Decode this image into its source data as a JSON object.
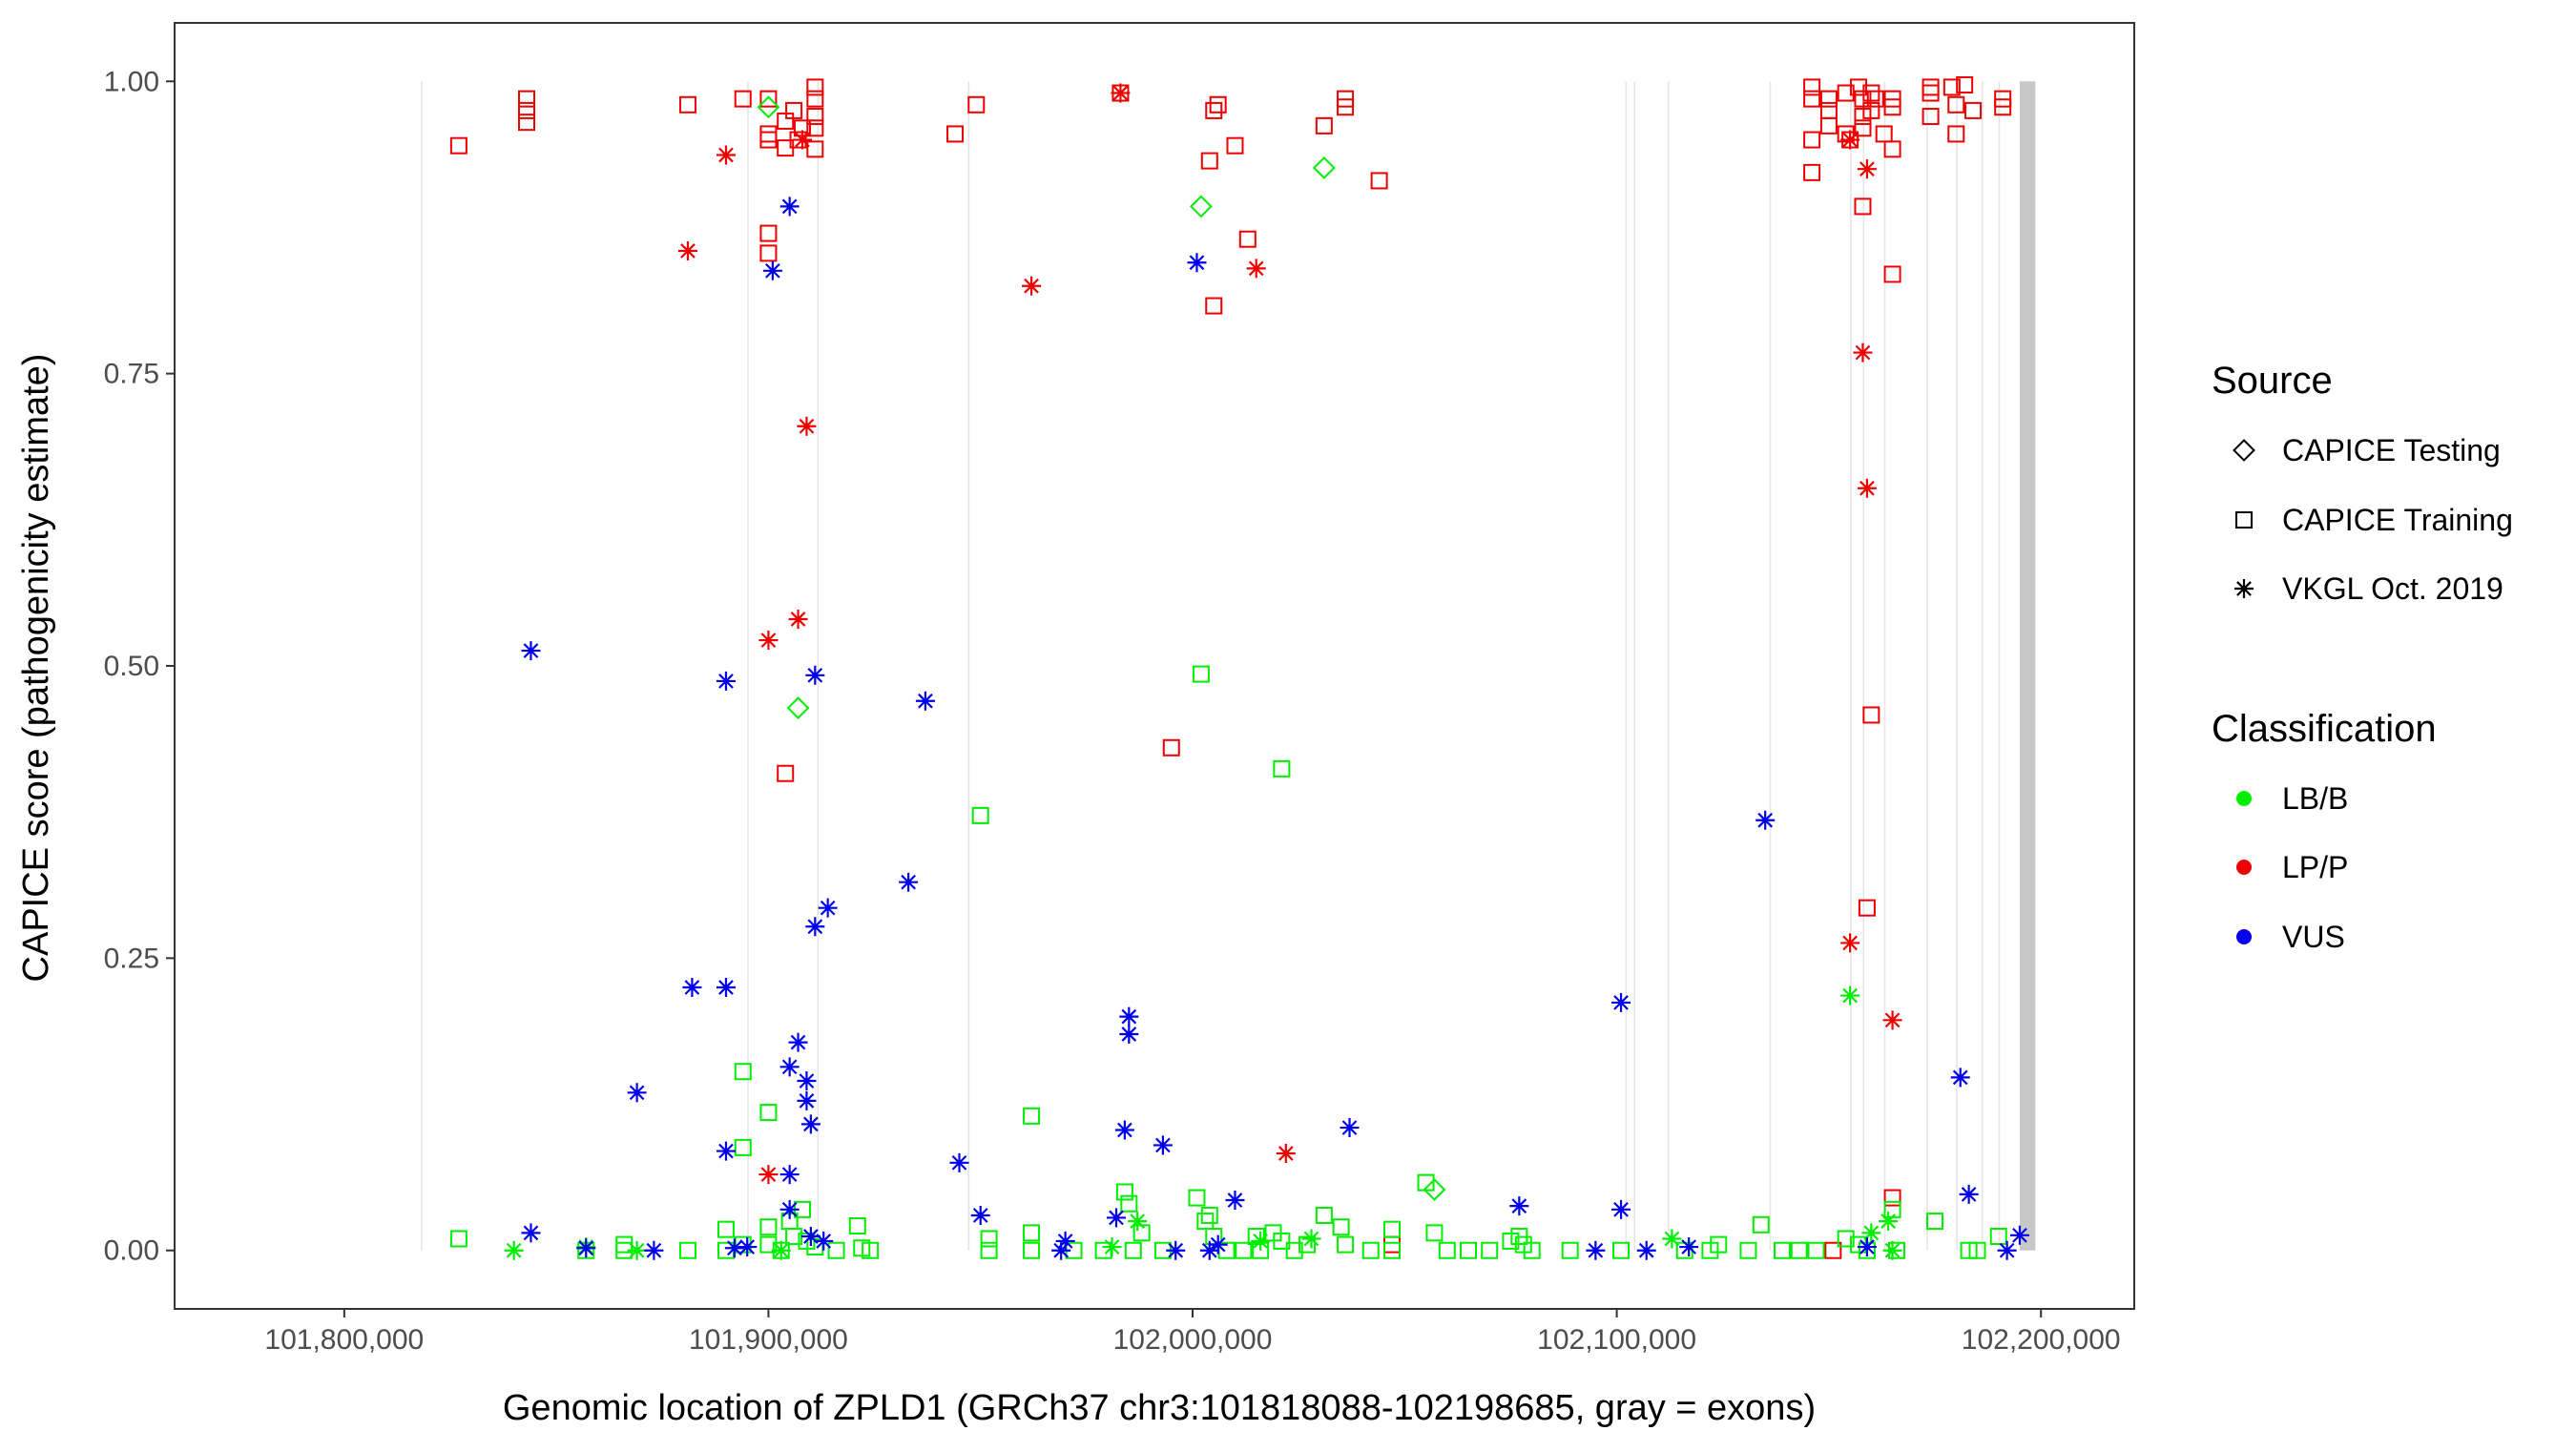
{
  "chart_data": {
    "type": "scatter",
    "xlabel": "Genomic location of ZPLD1 (GRCh37 chr3:101818088-102198685, gray = exons)",
    "ylabel": "CAPICE score (pathogenicity estimate)",
    "xlim": [
      101760000,
      102222000
    ],
    "ylim": [
      -0.05,
      1.05
    ],
    "x_ticks": [
      101800000,
      101900000,
      102000000,
      102100000,
      102200000
    ],
    "x_tick_labels": [
      "101,800,000",
      "101,900,000",
      "102,000,000",
      "102,100,000",
      "102,200,000"
    ],
    "y_ticks": [
      0,
      0.25,
      0.5,
      0.75,
      1.0
    ],
    "y_tick_labels": [
      "0.00",
      "0.25",
      "0.50",
      "0.75",
      "1.00"
    ],
    "grid": false,
    "exons": [
      [
        101818088,
        101818400
      ],
      [
        101895000,
        101895300
      ],
      [
        101911500,
        101911800
      ],
      [
        101947000,
        101947400
      ],
      [
        102102000,
        102102300
      ],
      [
        102104000,
        102104300
      ],
      [
        102112000,
        102112300
      ],
      [
        102136000,
        102136300
      ],
      [
        102155000,
        102155300
      ],
      [
        102158000,
        102158300
      ],
      [
        102163000,
        102163300
      ],
      [
        102173000,
        102173300
      ],
      [
        102180000,
        102180300
      ],
      [
        102186000,
        102186300
      ],
      [
        102190000,
        102190300
      ],
      [
        102195000,
        102198685
      ]
    ],
    "legend": {
      "placement": "right",
      "source_title": "Source",
      "source_entries": [
        {
          "label": "CAPICE Testing",
          "shape": "diamond"
        },
        {
          "label": "CAPICE Training",
          "shape": "square"
        },
        {
          "label": "VKGL Oct. 2019",
          "shape": "asterisk"
        }
      ],
      "class_title": "Classification",
      "class_entries": [
        {
          "label": "LB/B",
          "color": "#00ee00"
        },
        {
          "label": "LP/P",
          "color": "#ee0000"
        },
        {
          "label": "VUS",
          "color": "#0000ee"
        }
      ]
    },
    "colors": {
      "LB/B": "#00ee00",
      "LP/P": "#ee0000",
      "VUS": "#0000ee"
    },
    "series": [
      {
        "name": "LP/P - CAPICE Training",
        "class": "LP/P",
        "source": "CAPICE Training",
        "points": [
          [
            101827000,
            0.945
          ],
          [
            101843000,
            0.985
          ],
          [
            101843000,
            0.975
          ],
          [
            101843000,
            0.965
          ],
          [
            101881000,
            0.98
          ],
          [
            101894000,
            0.985
          ],
          [
            101900000,
            0.985
          ],
          [
            101900000,
            0.955
          ],
          [
            101900000,
            0.95
          ],
          [
            101900000,
            0.87
          ],
          [
            101900000,
            0.853
          ],
          [
            101904000,
            0.966
          ],
          [
            101904000,
            0.943
          ],
          [
            101906000,
            0.975
          ],
          [
            101907000,
            0.95
          ],
          [
            101908000,
            0.96
          ],
          [
            101911000,
            0.995
          ],
          [
            101911000,
            0.985
          ],
          [
            101911000,
            0.97
          ],
          [
            101911000,
            0.96
          ],
          [
            101911000,
            0.942
          ],
          [
            101904000,
            0.408
          ],
          [
            101944000,
            0.955
          ],
          [
            101949000,
            0.98
          ],
          [
            101983000,
            0.99
          ],
          [
            101995000,
            0.43
          ],
          [
            102004000,
            0.932
          ],
          [
            102005000,
            0.975
          ],
          [
            102006000,
            0.98
          ],
          [
            102005000,
            0.808
          ],
          [
            102010000,
            0.945
          ],
          [
            102013000,
            0.865
          ],
          [
            102031000,
            0.962
          ],
          [
            102036000,
            0.985
          ],
          [
            102036000,
            0.978
          ],
          [
            102044000,
            0.915
          ],
          [
            102047000,
            0.005
          ],
          [
            102146000,
            0.995
          ],
          [
            102146000,
            0.985
          ],
          [
            102146000,
            0.95
          ],
          [
            102146000,
            0.922
          ],
          [
            102150000,
            0.985
          ],
          [
            102150000,
            0.975
          ],
          [
            102150000,
            0.962
          ],
          [
            102154000,
            0.99
          ],
          [
            102154000,
            0.955
          ],
          [
            102155000,
            0.95
          ],
          [
            102157000,
            0.995
          ],
          [
            102158000,
            0.985
          ],
          [
            102158000,
            0.97
          ],
          [
            102158000,
            0.96
          ],
          [
            102158000,
            0.893
          ],
          [
            102160000,
            0.99
          ],
          [
            102160000,
            0.975
          ],
          [
            102161000,
            0.985
          ],
          [
            102163000,
            0.955
          ],
          [
            102165000,
            0.985
          ],
          [
            102165000,
            0.978
          ],
          [
            102165000,
            0.942
          ],
          [
            102165000,
            0.835
          ],
          [
            102159000,
            0.293
          ],
          [
            102160000,
            0.458
          ],
          [
            102165000,
            0.045
          ],
          [
            102174000,
            0.995
          ],
          [
            102174000,
            0.99
          ],
          [
            102174000,
            0.97
          ],
          [
            102179000,
            0.995
          ],
          [
            102180000,
            0.955
          ],
          [
            102180000,
            0.98
          ],
          [
            102182000,
            0.997
          ],
          [
            102184000,
            0.975
          ],
          [
            102191000,
            0.985
          ],
          [
            102191000,
            0.978
          ],
          [
            102151000,
            0.0
          ]
        ]
      },
      {
        "name": "LP/P - VKGL Oct. 2019",
        "class": "LP/P",
        "source": "VKGL Oct. 2019",
        "points": [
          [
            101881000,
            0.855
          ],
          [
            101890000,
            0.937
          ],
          [
            101900000,
            0.065
          ],
          [
            101900000,
            0.522
          ],
          [
            101907000,
            0.54
          ],
          [
            101908000,
            0.95
          ],
          [
            101909000,
            0.705
          ],
          [
            101962000,
            0.825
          ],
          [
            101983000,
            0.99
          ],
          [
            102015000,
            0.84
          ],
          [
            102022000,
            0.083
          ],
          [
            102155000,
            0.95
          ],
          [
            102155000,
            0.263
          ],
          [
            102158000,
            0.768
          ],
          [
            102159000,
            0.652
          ],
          [
            102159000,
            0.925
          ],
          [
            102165000,
            0.197
          ]
        ]
      },
      {
        "name": "LB/B - CAPICE Testing",
        "class": "LB/B",
        "source": "CAPICE Testing",
        "points": [
          [
            101900000,
            0.978
          ],
          [
            101907000,
            0.464
          ],
          [
            102002000,
            0.893
          ],
          [
            102031000,
            0.926
          ],
          [
            102057000,
            0.052
          ]
        ]
      },
      {
        "name": "LB/B - CAPICE Training",
        "class": "LB/B",
        "source": "CAPICE Training",
        "points": [
          [
            101827000,
            0.01
          ],
          [
            101857000,
            0.0
          ],
          [
            101866000,
            0.005
          ],
          [
            101866000,
            0.0
          ],
          [
            101881000,
            0.0
          ],
          [
            101890000,
            0.018
          ],
          [
            101890000,
            0.0
          ],
          [
            101894000,
            0.153
          ],
          [
            101894000,
            0.088
          ],
          [
            101894000,
            0.005
          ],
          [
            101900000,
            0.118
          ],
          [
            101900000,
            0.02
          ],
          [
            101900000,
            0.005
          ],
          [
            101903000,
            0.0
          ],
          [
            101905000,
            0.025
          ],
          [
            101906000,
            0.012
          ],
          [
            101908000,
            0.035
          ],
          [
            101909000,
            0.008
          ],
          [
            101911000,
            0.003
          ],
          [
            101916000,
            0.0
          ],
          [
            101921000,
            0.021
          ],
          [
            101922000,
            0.002
          ],
          [
            101924000,
            0.0
          ],
          [
            101950000,
            0.372
          ],
          [
            101952000,
            0.01
          ],
          [
            101952000,
            0.0
          ],
          [
            101962000,
            0.115
          ],
          [
            101962000,
            0.015
          ],
          [
            101962000,
            0.0
          ],
          [
            101972000,
            0.0
          ],
          [
            101979000,
            0.0
          ],
          [
            101984000,
            0.05
          ],
          [
            101985000,
            0.04
          ],
          [
            101986000,
            0.0
          ],
          [
            101988000,
            0.015
          ],
          [
            101993000,
            0.0
          ],
          [
            102001000,
            0.045
          ],
          [
            102002000,
            0.493
          ],
          [
            102003000,
            0.025
          ],
          [
            102005000,
            0.012
          ],
          [
            102004000,
            0.03
          ],
          [
            102008000,
            0.0
          ],
          [
            102012000,
            0.0
          ],
          [
            102015000,
            0.012
          ],
          [
            102016000,
            0.0
          ],
          [
            102019000,
            0.015
          ],
          [
            102021000,
            0.008
          ],
          [
            102021000,
            0.412
          ],
          [
            102024000,
            0.0
          ],
          [
            102027000,
            0.005
          ],
          [
            102031000,
            0.03
          ],
          [
            102035000,
            0.02
          ],
          [
            102036000,
            0.005
          ],
          [
            102042000,
            0.0
          ],
          [
            102047000,
            0.018
          ],
          [
            102047000,
            0.0
          ],
          [
            102055000,
            0.058
          ],
          [
            102057000,
            0.015
          ],
          [
            102060000,
            0.0
          ],
          [
            102065000,
            0.0
          ],
          [
            102070000,
            0.0
          ],
          [
            102075000,
            0.008
          ],
          [
            102077000,
            0.012
          ],
          [
            102078000,
            0.005
          ],
          [
            102080000,
            0.0
          ],
          [
            102089000,
            0.0
          ],
          [
            102101000,
            0.0
          ],
          [
            102116000,
            0.0
          ],
          [
            102122000,
            0.0
          ],
          [
            102124000,
            0.005
          ],
          [
            102131000,
            0.0
          ],
          [
            102134000,
            0.022
          ],
          [
            102139000,
            0.0
          ],
          [
            102143000,
            0.0
          ],
          [
            102147000,
            0.0
          ],
          [
            102154000,
            0.01
          ],
          [
            102157000,
            0.005
          ],
          [
            102159000,
            0.0
          ],
          [
            102165000,
            0.035
          ],
          [
            102166000,
            0.0
          ],
          [
            102175000,
            0.025
          ],
          [
            102183000,
            0.0
          ],
          [
            102185000,
            0.0
          ],
          [
            102190000,
            0.012
          ]
        ]
      },
      {
        "name": "LB/B - VKGL Oct. 2019",
        "class": "LB/B",
        "source": "VKGL Oct. 2019",
        "points": [
          [
            101840000,
            0.0
          ],
          [
            101857000,
            0.003
          ],
          [
            101869000,
            0.0
          ],
          [
            101903000,
            0.0
          ],
          [
            101981000,
            0.003
          ],
          [
            101987000,
            0.025
          ],
          [
            102016000,
            0.008
          ],
          [
            102028000,
            0.01
          ],
          [
            102113000,
            0.01
          ],
          [
            102155000,
            0.218
          ],
          [
            102160000,
            0.015
          ],
          [
            102164000,
            0.025
          ],
          [
            102165000,
            0.0
          ]
        ]
      },
      {
        "name": "VUS - VKGL Oct. 2019",
        "class": "VUS",
        "source": "VKGL Oct. 2019",
        "points": [
          [
            101844000,
            0.513
          ],
          [
            101844000,
            0.015
          ],
          [
            101857000,
            0.002
          ],
          [
            101869000,
            0.135
          ],
          [
            101873000,
            0.0
          ],
          [
            101882000,
            0.225
          ],
          [
            101890000,
            0.487
          ],
          [
            101890000,
            0.225
          ],
          [
            101890000,
            0.085
          ],
          [
            101892000,
            0.002
          ],
          [
            101895000,
            0.003
          ],
          [
            101901000,
            0.838
          ],
          [
            101905000,
            0.893
          ],
          [
            101905000,
            0.157
          ],
          [
            101905000,
            0.065
          ],
          [
            101905000,
            0.035
          ],
          [
            101907000,
            0.178
          ],
          [
            101909000,
            0.145
          ],
          [
            101909000,
            0.128
          ],
          [
            101910000,
            0.108
          ],
          [
            101910000,
            0.012
          ],
          [
            101911000,
            0.492
          ],
          [
            101911000,
            0.277
          ],
          [
            101913000,
            0.008
          ],
          [
            101914000,
            0.293
          ],
          [
            101933000,
            0.315
          ],
          [
            101937000,
            0.47
          ],
          [
            101945000,
            0.075
          ],
          [
            101950000,
            0.03
          ],
          [
            101969000,
            0.0
          ],
          [
            101970000,
            0.008
          ],
          [
            101982000,
            0.028
          ],
          [
            101984000,
            0.103
          ],
          [
            101985000,
            0.2
          ],
          [
            101985000,
            0.185
          ],
          [
            101993000,
            0.09
          ],
          [
            101996000,
            0.0
          ],
          [
            102001000,
            0.845
          ],
          [
            102004000,
            0.0
          ],
          [
            102006000,
            0.005
          ],
          [
            102010000,
            0.043
          ],
          [
            102037000,
            0.105
          ],
          [
            102077000,
            0.038
          ],
          [
            102095000,
            0.0
          ],
          [
            102101000,
            0.212
          ],
          [
            102101000,
            0.035
          ],
          [
            102107000,
            0.0
          ],
          [
            102117000,
            0.003
          ],
          [
            102135000,
            0.368
          ],
          [
            102159000,
            0.003
          ],
          [
            102181000,
            0.148
          ],
          [
            102183000,
            0.048
          ],
          [
            102192000,
            0.0
          ],
          [
            102195000,
            0.013
          ]
        ]
      }
    ]
  }
}
